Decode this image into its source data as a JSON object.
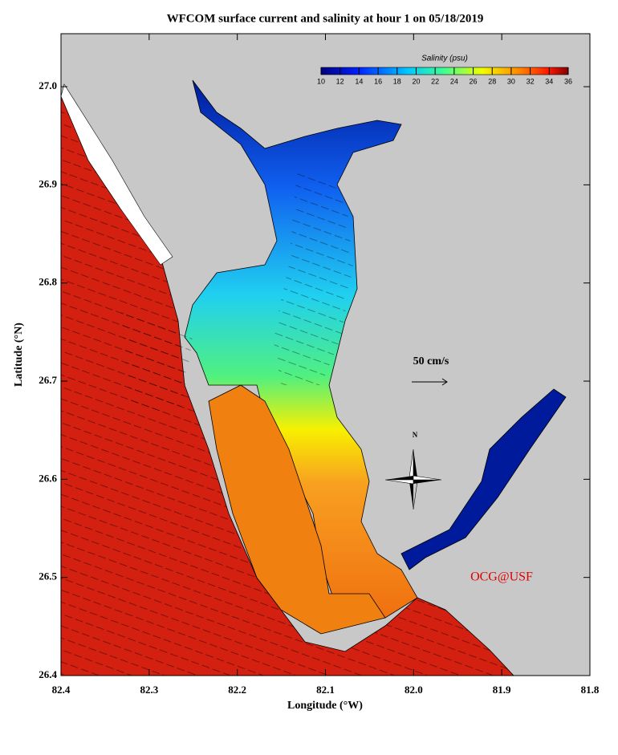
{
  "chart_data": {
    "type": "map",
    "title": "WFCOM surface current and salinity at hour 1 on 05/18/2019",
    "x_label": "Longitude (°W)",
    "y_label": "Latitude (°N)",
    "xlim": [
      -82.4,
      -81.8
    ],
    "ylim": [
      26.4,
      27.054
    ],
    "xticks": [
      {
        "value": -82.4,
        "label": "82.4"
      },
      {
        "value": -82.3,
        "label": "82.3"
      },
      {
        "value": -82.2,
        "label": "82.2"
      },
      {
        "value": -82.1,
        "label": "82.1"
      },
      {
        "value": -82.0,
        "label": "82.0"
      },
      {
        "value": -81.9,
        "label": "81.9"
      },
      {
        "value": -81.8,
        "label": "81.8"
      }
    ],
    "yticks": [
      26.4,
      26.5,
      26.6,
      26.7,
      26.8,
      26.9,
      {
        "value": 27.0,
        "label": "27.0"
      }
    ],
    "colorbar": {
      "label": "Salinity (psu)",
      "lim": [
        10,
        36
      ],
      "ticks": [
        10,
        12,
        14,
        16,
        18,
        20,
        22,
        24,
        26,
        28,
        30,
        32,
        34,
        36
      ]
    },
    "scale_label": "50 cm/s",
    "compass_label": "N",
    "credit": "OCG@USF"
  }
}
